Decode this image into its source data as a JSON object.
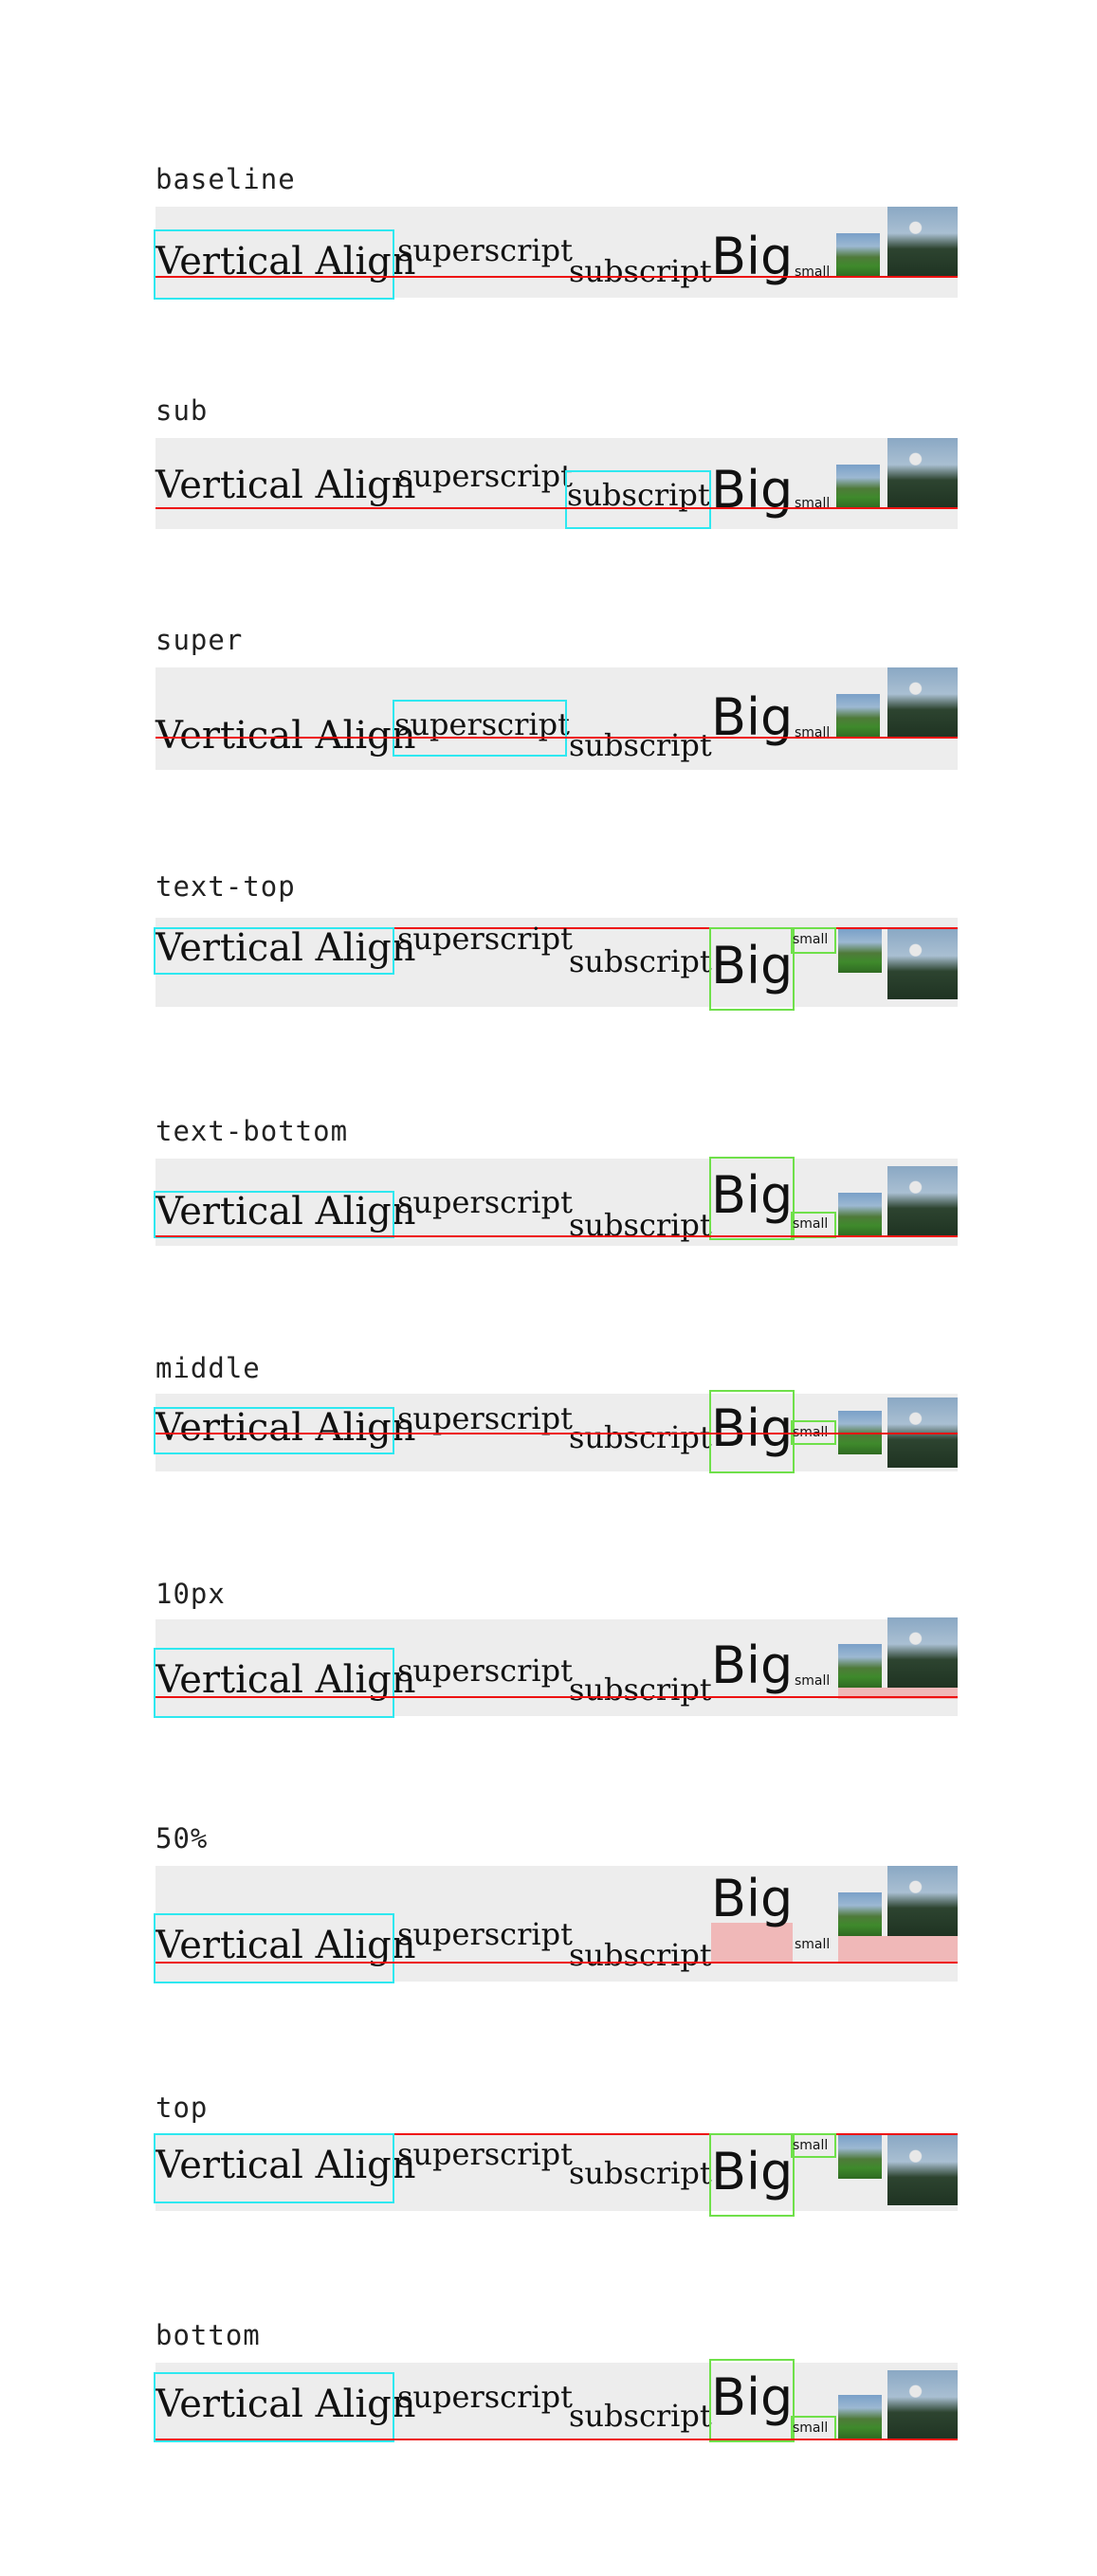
{
  "rows": [
    {
      "label": "baseline"
    },
    {
      "label": "sub"
    },
    {
      "label": "super"
    },
    {
      "label": "text-top"
    },
    {
      "label": "text-bottom"
    },
    {
      "label": "middle"
    },
    {
      "label": "10px"
    },
    {
      "label": "50%"
    },
    {
      "label": "top"
    },
    {
      "label": "bottom"
    }
  ],
  "sample": {
    "vertical_align": "Vertical Align",
    "superscript": "superscript",
    "subscript": "subscript",
    "big": "Big",
    "small": "small"
  },
  "colors": {
    "highlight_cyan": "#2ee8f0",
    "highlight_green": "#6fe04a",
    "reference_line": "#e11111",
    "offset_fill": "#f0b8b8",
    "row_background": "#ededed"
  },
  "images": [
    "meadow-photo",
    "castle-photo"
  ]
}
